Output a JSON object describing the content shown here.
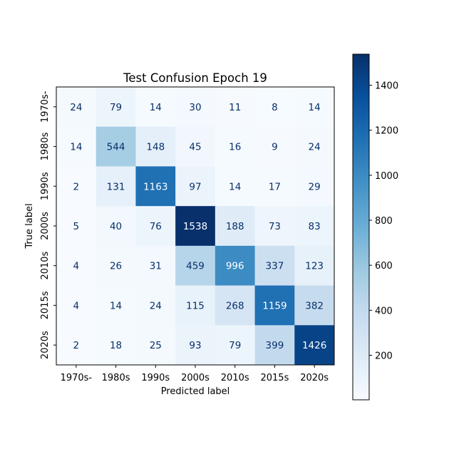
{
  "chart_data": {
    "type": "heatmap",
    "title": "Test Confusion Epoch 19",
    "xlabel": "Predicted label",
    "ylabel": "True label",
    "x_categories": [
      "1970s-",
      "1980s",
      "1990s",
      "2000s",
      "2010s",
      "2015s",
      "2020s"
    ],
    "y_categories": [
      "1970s-",
      "1980s",
      "1990s",
      "2000s",
      "2010s",
      "2015s",
      "2020s"
    ],
    "values": [
      [
        24,
        79,
        14,
        30,
        11,
        8,
        14
      ],
      [
        14,
        544,
        148,
        45,
        16,
        9,
        24
      ],
      [
        2,
        131,
        1163,
        97,
        14,
        17,
        29
      ],
      [
        5,
        40,
        76,
        1538,
        188,
        73,
        83
      ],
      [
        4,
        26,
        31,
        459,
        996,
        337,
        123
      ],
      [
        4,
        14,
        24,
        115,
        268,
        1159,
        382
      ],
      [
        2,
        18,
        25,
        93,
        79,
        399,
        1426
      ]
    ],
    "colormap": "Blues",
    "colorbar": {
      "vmin": 2,
      "vmax": 1538,
      "ticks": [
        200,
        400,
        600,
        800,
        1000,
        1200,
        1400
      ],
      "tick_labels": [
        "200",
        "400",
        "600",
        "800",
        "1000",
        "1200",
        "1400"
      ]
    },
    "text_colors": {
      "dark": "#08306b",
      "light": "#ffffff"
    }
  }
}
